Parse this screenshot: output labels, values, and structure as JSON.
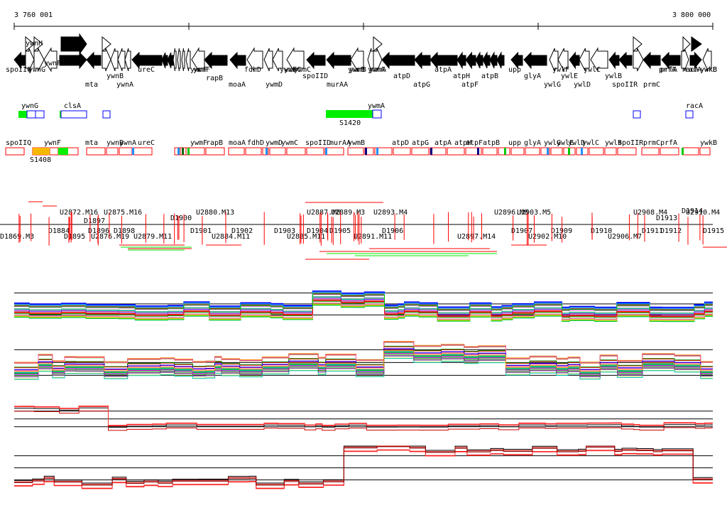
{
  "ruler": {
    "start_label": "3 760 001",
    "end_label": "3 800 000"
  },
  "genes_top": [
    "ywnH",
    "clsA",
    "ywmF",
    "ywmE",
    "ywmC",
    "ywmB",
    "ywmA",
    "prfA",
    "racA",
    "ywkB"
  ],
  "genes_bottom": [
    "spoIIQ",
    "ywnG",
    "ywnF",
    "mta",
    "ywnB",
    "ywnA",
    "ureC",
    "ywmF",
    "rapB",
    "moaA",
    "fdhD",
    "ywmD",
    "ywmC",
    "spoIID",
    "murAA",
    "ywmB",
    "ywmA",
    "atpD",
    "atpG",
    "atpA",
    "atpH",
    "atpF",
    "atpB",
    "upp",
    "glyA",
    "ywlG",
    "ywlF",
    "ywlE",
    "ywlD",
    "ywlC",
    "spoIIR",
    "ywlB",
    "prmC",
    "prfA",
    "racA",
    "ywkB"
  ],
  "tu_labels": {
    "ywnG": "ywnG",
    "clsA": "clsA",
    "ywmA": "ywmA",
    "S1420": "S1420",
    "racA": "racA"
  },
  "feature_labels": [
    "spoIIQ",
    "ywnF",
    "mta",
    "ywnB",
    "ywnA",
    "ureC",
    "ywmF",
    "rapB",
    "moaA",
    "fdhD",
    "ywmD",
    "ywmC",
    "spoIID",
    "murAA",
    "ywmB",
    "atpD",
    "atpG",
    "atpA",
    "atpH",
    "atpF",
    "atpB",
    "upp",
    "glyA",
    "ywlG",
    "ywlE",
    "ywlD",
    "ywlC",
    "ywlB",
    "spoIIR",
    "prmC",
    "prfA",
    "ywkB"
  ],
  "feature_s_label": "S1408",
  "probe_up": [
    "U2872.M16",
    "U2875.M16",
    "U2880.M13",
    "U2887.M8",
    "U2889.M3",
    "U2893.M4",
    "U2896.M8",
    "U2903.M5",
    "U2908.M4",
    "U2910.M4",
    "D1900"
  ],
  "probe_down": [
    "D1869.M3",
    "D1884",
    "D1895",
    "D1897",
    "D1896",
    "D1898",
    "U2876.M19",
    "U2879.M11",
    "D1901",
    "D1902",
    "U2884.M11",
    "D1903",
    "U2885.M11",
    "D1904",
    "D1905",
    "U2891.M11",
    "D1906",
    "U2897.M14",
    "D1907",
    "U2902.M10",
    "D1909",
    "D1910",
    "D1911",
    "U2906.M7",
    "D1912",
    "D1913",
    "D1914",
    "D1915"
  ],
  "colors": {
    "accent_green": "#00ee00",
    "probe_red": "#ff0000",
    "box_blue": "#0000ff",
    "feature_orange": "#f5b800"
  }
}
